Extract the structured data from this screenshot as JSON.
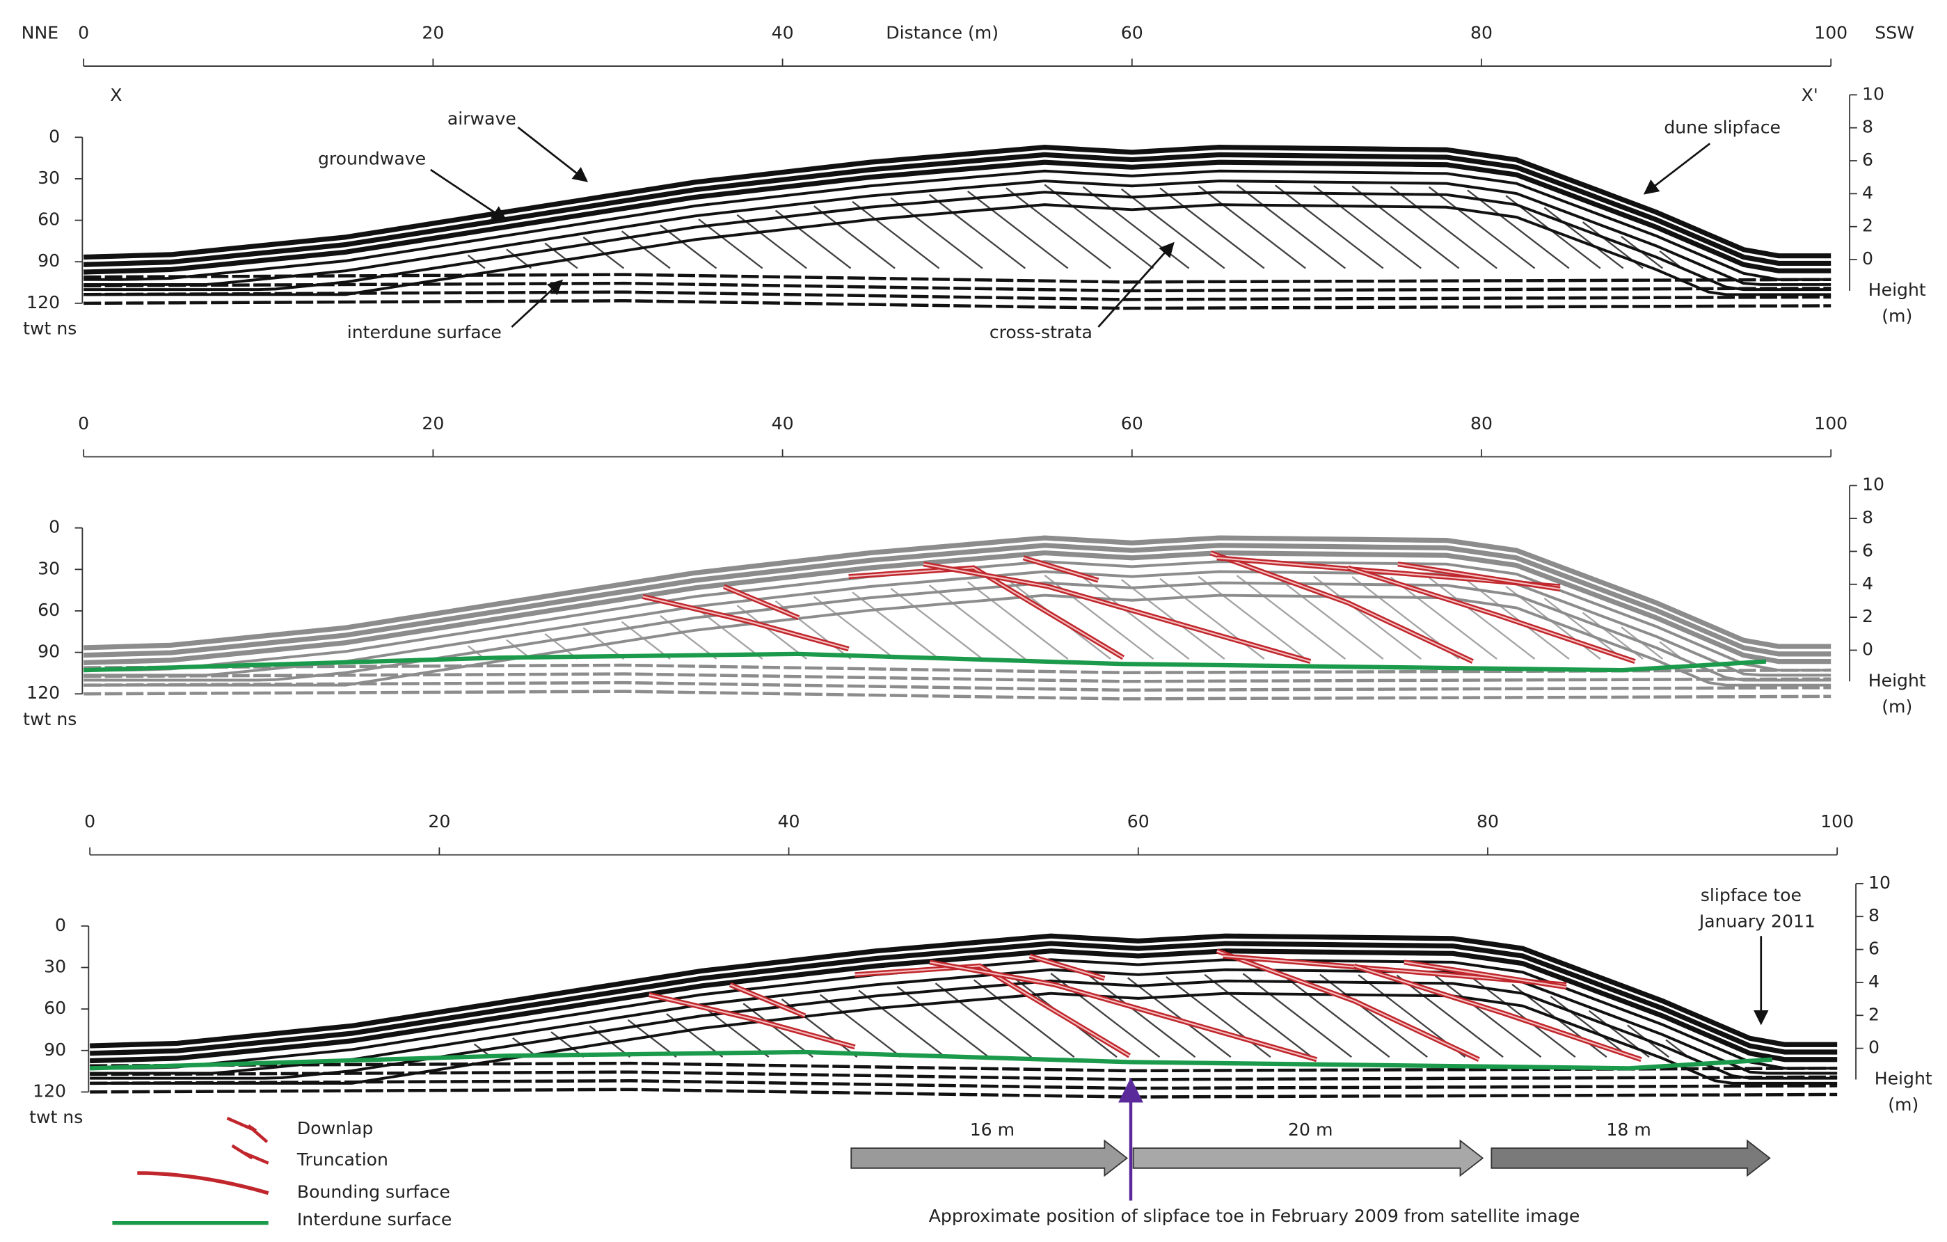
{
  "header": {
    "left": "NNE",
    "right": "SSW",
    "axis_title": "Distance (m)",
    "start": "X",
    "end": "X'"
  },
  "axes": {
    "distance_ticks": [
      0,
      20,
      40,
      60,
      80,
      100
    ],
    "depth_ticks": [
      0,
      30,
      60,
      90,
      120
    ],
    "depth_unit": "twt ns",
    "height_ticks": [
      10,
      8,
      6,
      4,
      2,
      0
    ],
    "height_label": [
      "Height",
      "(m)"
    ]
  },
  "panel_1_labels": {
    "airwave": "airwave",
    "groundwave": "groundwave",
    "dune_slipface": "dune slipface",
    "interdune_surface": "interdune surface",
    "cross_strata": "cross-strata"
  },
  "panel_3_labels": {
    "slipface_toe": [
      "slipface toe",
      "January 2011"
    ]
  },
  "legend": [
    "Downlap",
    "Truncation",
    "Bounding surface",
    "Interdune surface"
  ],
  "migration": [
    "16 m",
    "20 m",
    "18 m"
  ],
  "caption": "Approximate position of slipface toe in February 2009 from satellite image"
}
